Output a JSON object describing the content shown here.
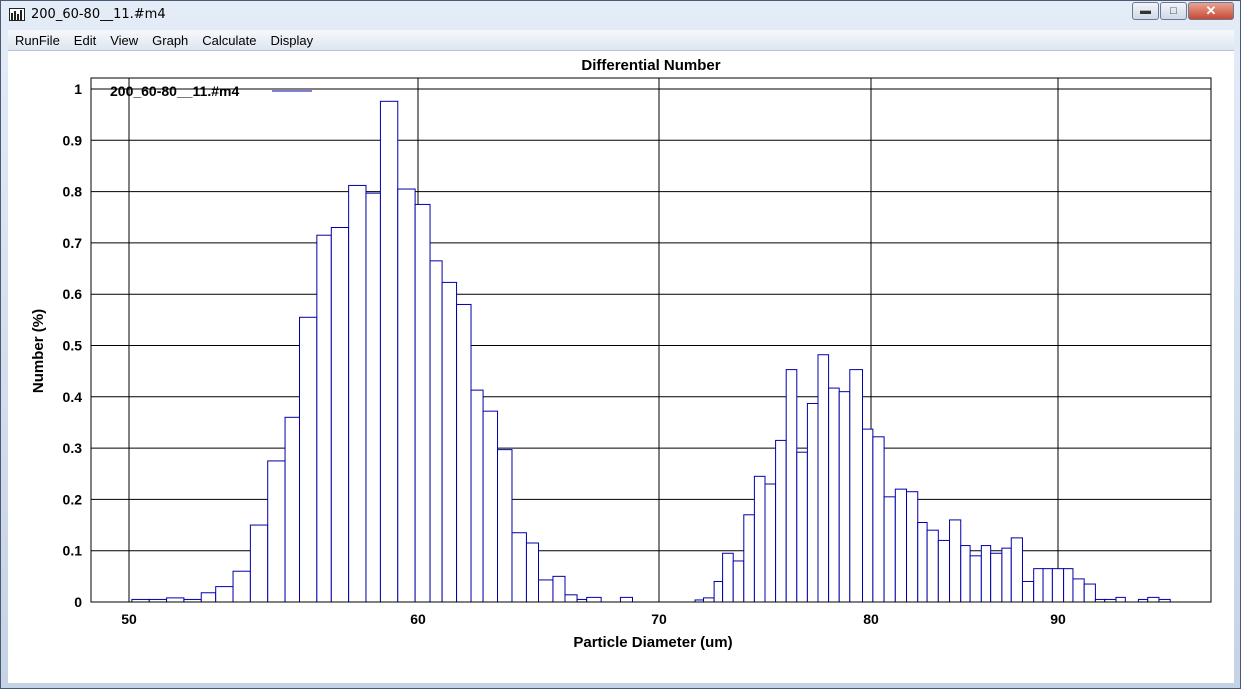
{
  "window": {
    "title": "200_60-80__11.#m4"
  },
  "menu": [
    "RunFile",
    "Edit",
    "View",
    "Graph",
    "Calculate",
    "Display"
  ],
  "chart_data": {
    "type": "bar",
    "title": "Differential Number",
    "xlabel": "Particle Diameter (um)",
    "ylabel": "Number (%)",
    "legend": "200_60-80__11.#m4",
    "series_color": "#0000aa",
    "y_ticks": [
      "0",
      "0.1",
      "0.2",
      "0.3",
      "0.4",
      "0.5",
      "0.6",
      "0.7",
      "0.8",
      "0.9",
      "1"
    ],
    "x_ticks": [
      "50",
      "60",
      "70",
      "80",
      "90"
    ],
    "ylim": [
      0,
      1.03
    ],
    "grid": true,
    "legend_position": "top-left",
    "bars": [
      [
        50.1,
        50.7,
        0.005
      ],
      [
        50.7,
        51.3,
        0.005
      ],
      [
        51.3,
        51.9,
        0.008
      ],
      [
        51.9,
        52.5,
        0.005
      ],
      [
        52.5,
        53.0,
        0.018
      ],
      [
        53.0,
        53.6,
        0.03
      ],
      [
        53.6,
        54.2,
        0.06
      ],
      [
        54.2,
        54.8,
        0.15
      ],
      [
        54.8,
        55.4,
        0.275
      ],
      [
        55.4,
        55.9,
        0.36
      ],
      [
        55.9,
        56.5,
        0.555
      ],
      [
        56.5,
        57.0,
        0.715
      ],
      [
        57.0,
        57.6,
        0.73
      ],
      [
        57.6,
        58.2,
        0.812
      ],
      [
        58.2,
        58.7,
        0.797
      ],
      [
        58.7,
        59.3,
        0.976
      ],
      [
        59.3,
        59.9,
        0.805
      ],
      [
        59.9,
        60.5,
        0.775
      ],
      [
        60.5,
        61.0,
        0.665
      ],
      [
        61.0,
        61.6,
        0.623
      ],
      [
        61.6,
        62.2,
        0.58
      ],
      [
        62.2,
        62.7,
        0.413
      ],
      [
        62.7,
        63.3,
        0.372
      ],
      [
        63.3,
        63.9,
        0.297
      ],
      [
        63.9,
        64.5,
        0.135
      ],
      [
        64.5,
        65.0,
        0.115
      ],
      [
        65.0,
        65.6,
        0.043
      ],
      [
        65.6,
        66.1,
        0.05
      ],
      [
        66.1,
        66.6,
        0.014
      ],
      [
        66.6,
        67.0,
        0.005
      ],
      [
        67.0,
        67.6,
        0.009
      ],
      [
        68.4,
        68.9,
        0.009
      ],
      [
        71.7,
        72.1,
        0.004
      ],
      [
        72.1,
        72.6,
        0.008
      ],
      [
        72.6,
        73.0,
        0.04
      ],
      [
        73.0,
        73.5,
        0.095
      ],
      [
        73.5,
        74.0,
        0.08
      ],
      [
        74.0,
        74.5,
        0.17
      ],
      [
        74.5,
        75.0,
        0.245
      ],
      [
        75.0,
        75.5,
        0.23
      ],
      [
        75.5,
        76.0,
        0.315
      ],
      [
        76.0,
        76.5,
        0.453
      ],
      [
        76.5,
        77.0,
        0.292
      ],
      [
        77.0,
        77.5,
        0.387
      ],
      [
        77.5,
        78.0,
        0.482
      ],
      [
        78.0,
        78.5,
        0.417
      ],
      [
        78.5,
        79.0,
        0.41
      ],
      [
        79.0,
        79.6,
        0.453
      ],
      [
        79.6,
        80.1,
        0.337
      ],
      [
        80.1,
        80.7,
        0.322
      ],
      [
        80.7,
        81.3,
        0.205
      ],
      [
        81.3,
        81.9,
        0.22
      ],
      [
        81.9,
        82.5,
        0.215
      ],
      [
        82.5,
        83.0,
        0.155
      ],
      [
        83.0,
        83.6,
        0.14
      ],
      [
        83.6,
        84.2,
        0.12
      ],
      [
        84.2,
        84.8,
        0.16
      ],
      [
        84.8,
        85.3,
        0.11
      ],
      [
        85.3,
        85.9,
        0.09
      ],
      [
        85.9,
        86.4,
        0.11
      ],
      [
        86.4,
        87.0,
        0.095
      ],
      [
        87.0,
        87.5,
        0.105
      ],
      [
        87.5,
        88.1,
        0.125
      ],
      [
        88.1,
        88.7,
        0.04
      ],
      [
        88.7,
        89.2,
        0.065
      ],
      [
        89.2,
        89.7,
        0.065
      ],
      [
        89.7,
        90.3,
        0.065
      ],
      [
        90.3,
        90.8,
        0.065
      ],
      [
        90.8,
        91.4,
        0.045
      ],
      [
        91.4,
        92.0,
        0.035
      ],
      [
        92.0,
        92.5,
        0.005
      ],
      [
        92.5,
        93.1,
        0.005
      ],
      [
        93.1,
        93.6,
        0.009
      ],
      [
        94.3,
        94.8,
        0.005
      ],
      [
        94.8,
        95.4,
        0.009
      ],
      [
        95.4,
        96.0,
        0.005
      ]
    ]
  }
}
